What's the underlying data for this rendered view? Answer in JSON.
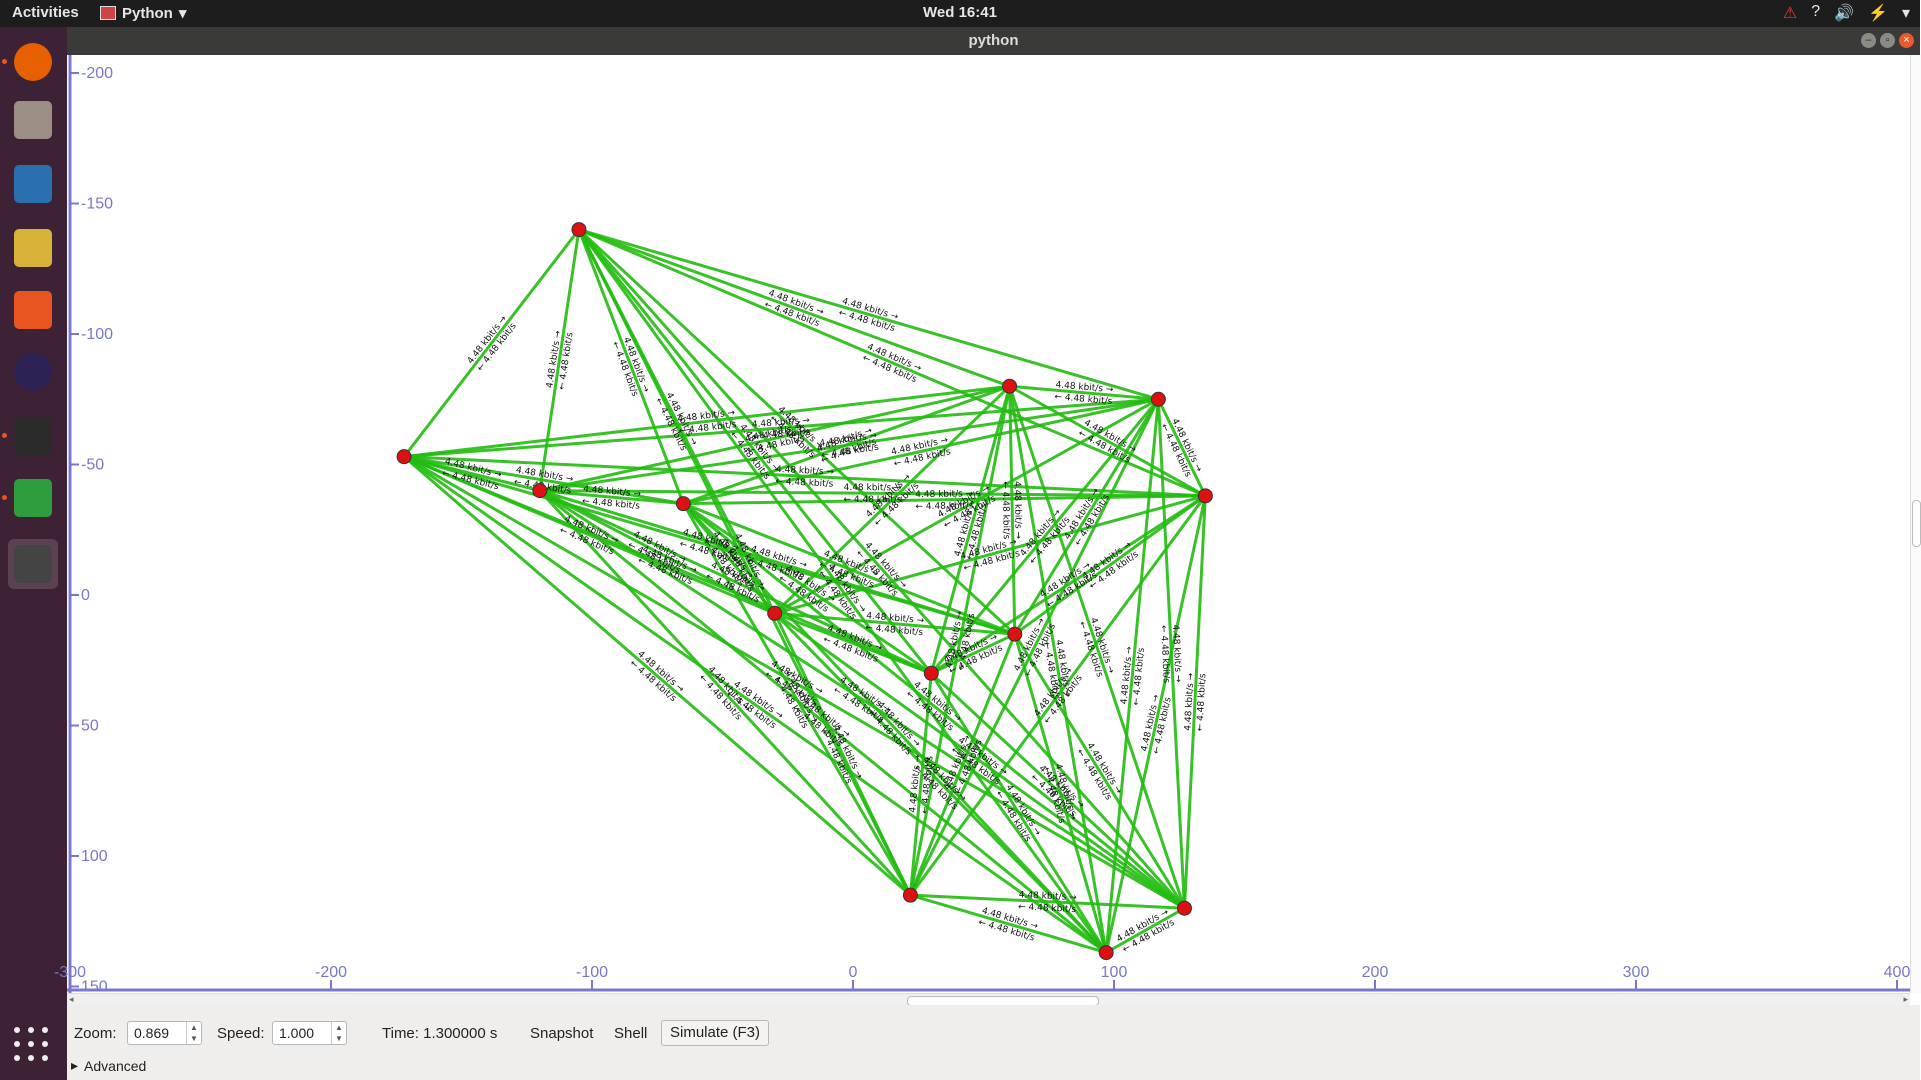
{
  "topbar": {
    "activities": "Activities",
    "app_menu": "Python",
    "clock": "Wed 16:41"
  },
  "window": {
    "title": "python"
  },
  "dock": {
    "items": [
      {
        "name": "firefox-icon",
        "color": "#e66000"
      },
      {
        "name": "files-icon",
        "color": "#9b8f85"
      },
      {
        "name": "writer-icon",
        "color": "#2a6fb0"
      },
      {
        "name": "rhythmbox-icon",
        "color": "#d9b23a"
      },
      {
        "name": "software-center-icon",
        "color": "#e95420"
      },
      {
        "name": "eclipse-icon",
        "color": "#2c2255"
      },
      {
        "name": "terminal-icon",
        "color": "#2b2b2b"
      },
      {
        "name": "calc-icon",
        "color": "#2e9d3e"
      },
      {
        "name": "python-app-icon",
        "color": "#444444"
      }
    ]
  },
  "axes": {
    "x_ticks": [
      "-300",
      "-200",
      "-100",
      "0",
      "100",
      "200",
      "300",
      "400"
    ],
    "y_ticks": [
      "-200",
      "-150",
      "-100",
      "-50",
      "0",
      "50",
      "100",
      "150"
    ],
    "axis_color": "#7777cc"
  },
  "graph": {
    "link_label": "4.48 kbit/s",
    "link_color": "#22bb11",
    "node_color": "#dd1111",
    "nodes": [
      {
        "x": -105,
        "y": -140
      },
      {
        "x": -172,
        "y": -53
      },
      {
        "x": 60,
        "y": -80
      },
      {
        "x": 117,
        "y": -75
      },
      {
        "x": 135,
        "y": -38
      },
      {
        "x": 22,
        "y": 115
      },
      {
        "x": 97,
        "y": 137
      },
      {
        "x": 127,
        "y": 120
      },
      {
        "x": 62,
        "y": 15
      },
      {
        "x": -65,
        "y": -35
      },
      {
        "x": -120,
        "y": -40
      },
      {
        "x": -30,
        "y": 7
      },
      {
        "x": 30,
        "y": 30
      }
    ]
  },
  "toolbar": {
    "zoom_label": "Zoom:",
    "zoom_value": "0.869",
    "speed_label": "Speed:",
    "speed_value": "1.000",
    "time_text": "Time: 1.300000 s",
    "snapshot": "Snapshot",
    "shell": "Shell",
    "simulate": "Simulate (F3)",
    "advanced": "Advanced"
  }
}
